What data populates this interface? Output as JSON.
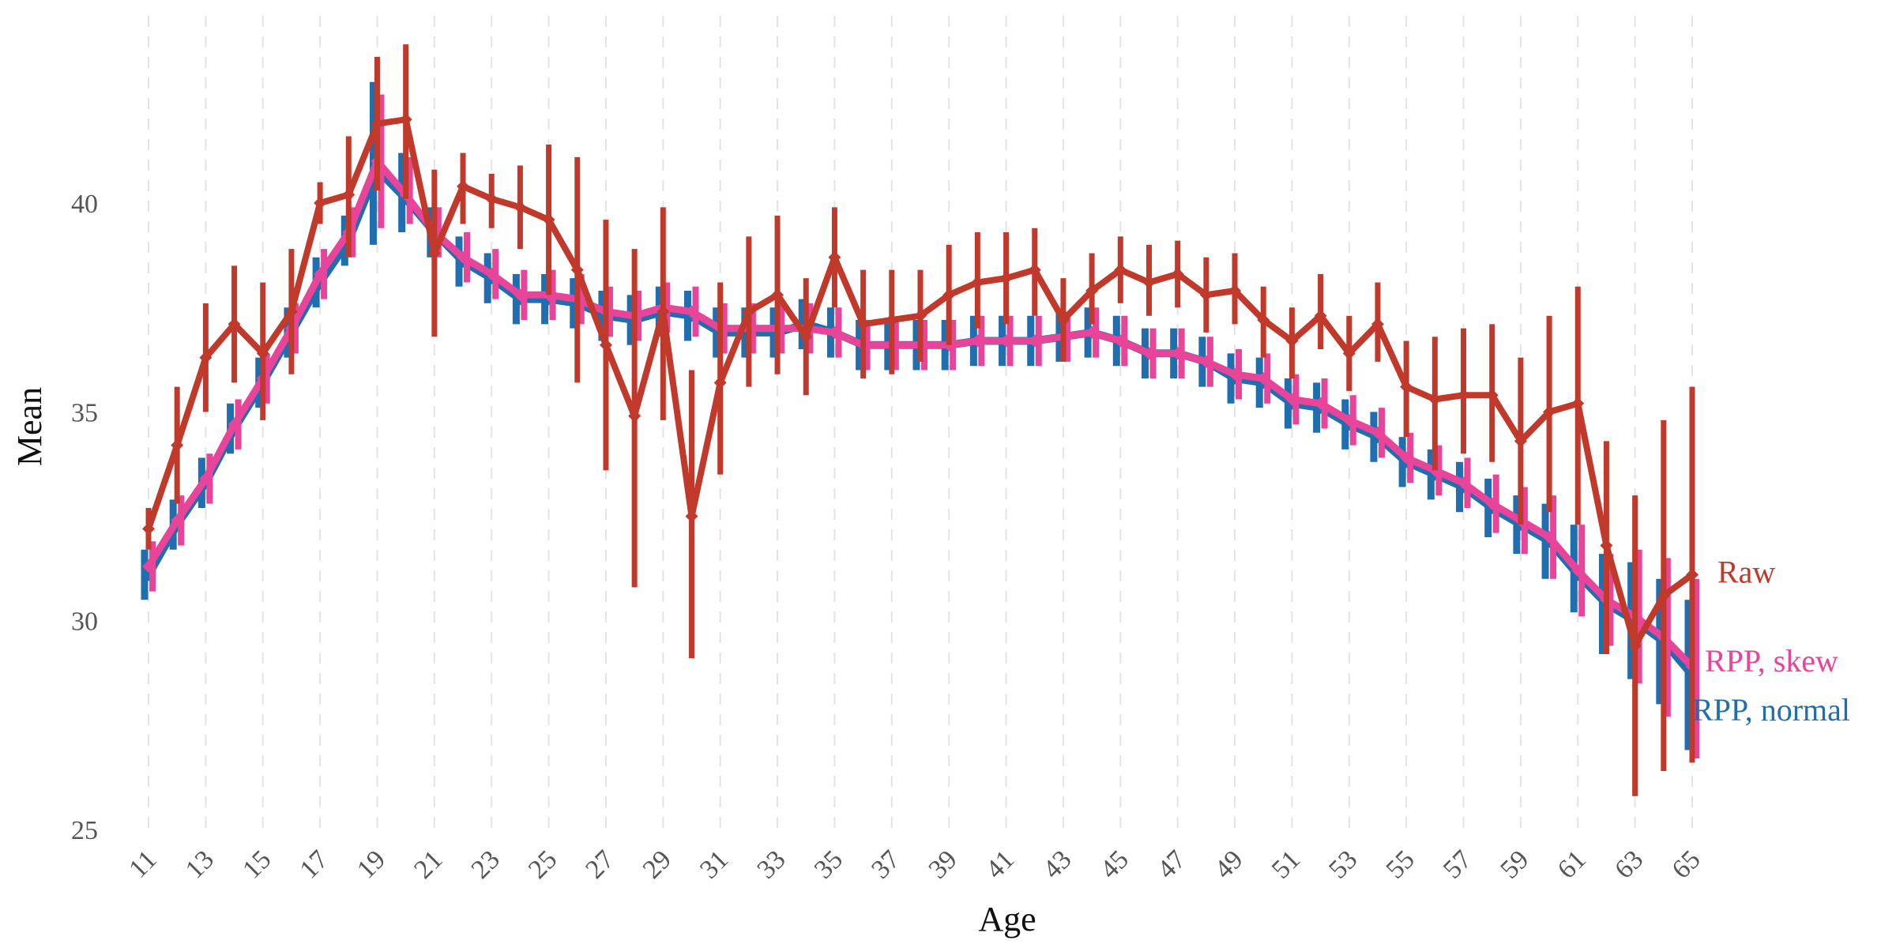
{
  "chart_data": {
    "type": "line",
    "title": "",
    "xlabel": "Age",
    "ylabel": "Mean",
    "xlim": [
      11,
      65
    ],
    "ylim": [
      25,
      43.5
    ],
    "xticks": [
      11,
      13,
      15,
      17,
      19,
      21,
      23,
      25,
      27,
      29,
      31,
      33,
      35,
      37,
      39,
      41,
      43,
      45,
      47,
      49,
      51,
      53,
      55,
      57,
      59,
      61,
      63,
      65
    ],
    "yticks": [
      25,
      30,
      35,
      40
    ],
    "grid": "vertical dashed",
    "legend": "direct labels at right end of lines",
    "x": [
      11,
      12,
      13,
      14,
      15,
      16,
      17,
      18,
      19,
      20,
      21,
      22,
      23,
      24,
      25,
      26,
      27,
      28,
      29,
      30,
      31,
      32,
      33,
      34,
      35,
      36,
      37,
      38,
      39,
      40,
      41,
      42,
      43,
      44,
      45,
      46,
      47,
      48,
      49,
      50,
      51,
      52,
      53,
      54,
      55,
      56,
      57,
      58,
      59,
      60,
      61,
      62,
      63,
      64,
      65
    ],
    "series": [
      {
        "name": "RPP, normal",
        "color": "#1f6fb0",
        "values": [
          31.1,
          32.3,
          33.3,
          34.6,
          35.7,
          36.9,
          38.1,
          39.1,
          40.8,
          40.1,
          39.3,
          38.6,
          38.2,
          37.7,
          37.7,
          37.6,
          37.3,
          37.2,
          37.4,
          37.3,
          36.9,
          36.9,
          36.9,
          37.1,
          36.9,
          36.6,
          36.6,
          36.6,
          36.6,
          36.7,
          36.7,
          36.7,
          36.8,
          36.9,
          36.7,
          36.4,
          36.4,
          36.2,
          35.8,
          35.7,
          35.2,
          35.1,
          34.7,
          34.4,
          33.8,
          33.5,
          33.2,
          32.7,
          32.3,
          31.9,
          31.1,
          30.4,
          30.0,
          29.5,
          28.7
        ],
        "lower": [
          30.5,
          31.7,
          32.7,
          34.0,
          35.1,
          36.3,
          37.5,
          38.5,
          39.0,
          39.3,
          38.7,
          38.0,
          37.6,
          37.1,
          37.1,
          37.0,
          36.7,
          36.6,
          36.8,
          36.7,
          36.3,
          36.3,
          36.3,
          36.5,
          36.3,
          36.0,
          36.0,
          36.0,
          36.0,
          36.1,
          36.1,
          36.1,
          36.2,
          36.3,
          36.1,
          35.8,
          35.8,
          35.6,
          35.2,
          35.1,
          34.6,
          34.5,
          34.1,
          33.8,
          33.2,
          32.9,
          32.6,
          32.0,
          31.6,
          31.0,
          30.2,
          29.2,
          28.6,
          28.0,
          26.9
        ],
        "upper": [
          31.7,
          32.9,
          33.9,
          35.2,
          36.3,
          37.5,
          38.7,
          39.7,
          42.9,
          41.2,
          39.9,
          39.2,
          38.8,
          38.3,
          38.3,
          38.2,
          37.9,
          37.8,
          38.0,
          37.9,
          37.5,
          37.5,
          37.5,
          37.7,
          37.5,
          37.2,
          37.2,
          37.2,
          37.2,
          37.3,
          37.3,
          37.3,
          37.4,
          37.5,
          37.3,
          37.0,
          37.0,
          36.8,
          36.4,
          36.3,
          35.8,
          35.7,
          35.3,
          35.0,
          34.4,
          34.1,
          33.8,
          33.4,
          33.0,
          32.8,
          32.3,
          31.6,
          31.4,
          31.0,
          30.5
        ]
      },
      {
        "name": "RPP, skew",
        "color": "#e8449a",
        "values": [
          31.3,
          32.4,
          33.4,
          34.7,
          35.8,
          37.0,
          38.3,
          39.3,
          41.0,
          40.2,
          39.3,
          38.7,
          38.3,
          37.8,
          37.8,
          37.7,
          37.4,
          37.3,
          37.5,
          37.4,
          37.0,
          37.0,
          37.0,
          37.0,
          36.9,
          36.6,
          36.6,
          36.6,
          36.6,
          36.7,
          36.7,
          36.7,
          36.8,
          36.9,
          36.7,
          36.4,
          36.4,
          36.2,
          35.9,
          35.8,
          35.3,
          35.2,
          34.8,
          34.5,
          33.9,
          33.6,
          33.3,
          32.8,
          32.4,
          32.0,
          31.2,
          30.5,
          30.1,
          29.6,
          28.9
        ],
        "lower": [
          30.7,
          31.8,
          32.8,
          34.1,
          35.2,
          36.4,
          37.7,
          38.7,
          39.4,
          39.5,
          38.7,
          38.1,
          37.7,
          37.2,
          37.2,
          37.1,
          36.8,
          36.7,
          36.9,
          36.8,
          36.4,
          36.4,
          36.4,
          36.4,
          36.3,
          36.0,
          36.0,
          36.0,
          36.0,
          36.1,
          36.1,
          36.1,
          36.2,
          36.3,
          36.1,
          35.8,
          35.8,
          35.6,
          35.3,
          35.2,
          34.7,
          34.6,
          34.2,
          33.9,
          33.3,
          33.0,
          32.7,
          32.1,
          31.6,
          31.0,
          30.1,
          29.4,
          28.5,
          27.7,
          26.7
        ],
        "upper": [
          31.9,
          33.0,
          34.0,
          35.3,
          36.4,
          37.6,
          38.9,
          39.9,
          42.6,
          41.1,
          39.9,
          39.3,
          38.9,
          38.4,
          38.4,
          38.3,
          38.0,
          37.9,
          38.1,
          38.0,
          37.6,
          37.6,
          37.6,
          37.6,
          37.5,
          37.2,
          37.2,
          37.2,
          37.2,
          37.3,
          37.3,
          37.3,
          37.4,
          37.5,
          37.3,
          37.0,
          37.0,
          36.8,
          36.5,
          36.4,
          35.9,
          35.8,
          35.4,
          35.1,
          34.5,
          34.2,
          33.9,
          33.5,
          33.2,
          33.0,
          32.3,
          31.6,
          31.7,
          31.5,
          31.0
        ]
      },
      {
        "name": "Raw",
        "color": "#c0392b",
        "values": [
          32.2,
          34.2,
          36.3,
          37.1,
          36.4,
          37.4,
          40.0,
          40.2,
          41.9,
          42.0,
          38.8,
          40.4,
          40.1,
          39.9,
          39.6,
          38.4,
          36.6,
          34.9,
          37.4,
          32.5,
          35.7,
          37.4,
          37.8,
          36.8,
          38.7,
          37.1,
          37.2,
          37.3,
          37.8,
          38.1,
          38.2,
          38.4,
          37.2,
          37.9,
          38.4,
          38.1,
          38.3,
          37.8,
          37.9,
          37.2,
          36.7,
          37.3,
          36.4,
          37.1,
          35.6,
          35.3,
          35.4,
          35.4,
          34.3,
          35.0,
          35.2,
          31.8,
          29.4,
          30.6,
          31.1
        ],
        "lower": [
          31.7,
          32.8,
          35.0,
          35.7,
          34.8,
          35.9,
          39.5,
          38.7,
          40.3,
          40.1,
          36.8,
          39.5,
          39.4,
          38.9,
          37.8,
          35.7,
          33.6,
          30.8,
          34.8,
          29.1,
          33.5,
          35.6,
          35.9,
          35.4,
          37.5,
          35.8,
          35.9,
          36.2,
          36.6,
          37.0,
          37.1,
          37.3,
          36.2,
          37.1,
          37.6,
          37.3,
          37.5,
          36.9,
          37.1,
          36.3,
          35.8,
          36.5,
          35.5,
          36.2,
          34.4,
          33.6,
          34.0,
          33.8,
          32.3,
          32.6,
          32.3,
          29.2,
          25.8,
          26.4,
          26.6
        ],
        "upper": [
          32.7,
          35.6,
          37.6,
          38.5,
          38.1,
          38.9,
          40.5,
          41.6,
          43.5,
          43.8,
          40.8,
          41.2,
          40.7,
          40.9,
          41.4,
          41.1,
          39.6,
          38.9,
          39.9,
          36.0,
          38.1,
          39.2,
          39.7,
          38.2,
          39.9,
          38.4,
          38.4,
          38.4,
          39.0,
          39.3,
          39.3,
          39.4,
          38.2,
          38.8,
          39.2,
          39.0,
          39.1,
          38.7,
          38.8,
          38.0,
          37.5,
          38.3,
          37.3,
          38.1,
          36.7,
          36.8,
          37.0,
          37.1,
          36.3,
          37.3,
          38.0,
          34.3,
          33.0,
          34.8,
          35.6
        ]
      }
    ]
  }
}
